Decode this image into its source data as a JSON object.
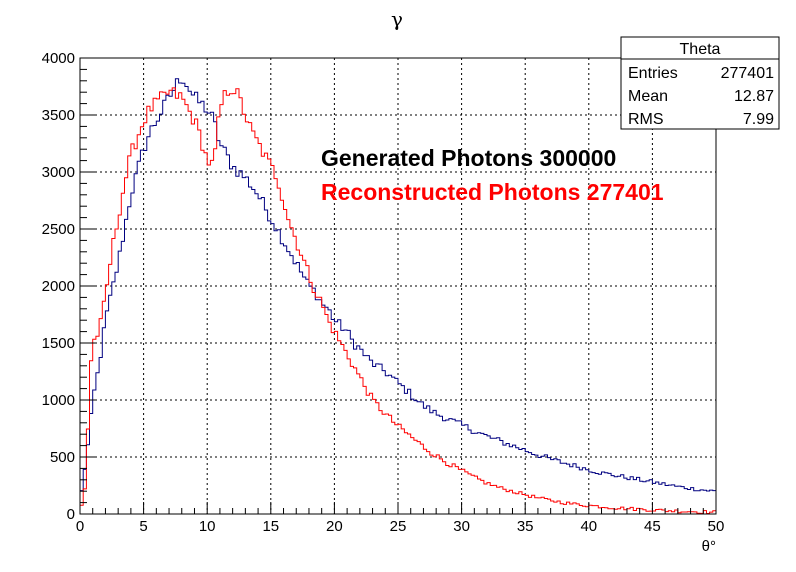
{
  "chart_data": {
    "type": "line",
    "title": "γ",
    "xlabel": "θ°",
    "ylabel": "",
    "xlim": [
      0,
      50
    ],
    "ylim": [
      0,
      4000
    ],
    "grid": true,
    "xticks": [
      "0",
      "5",
      "10",
      "15",
      "20",
      "25",
      "30",
      "35",
      "40",
      "45",
      "50"
    ],
    "yticks": [
      "0",
      "500",
      "1000",
      "1500",
      "2000",
      "2500",
      "3000",
      "3500",
      "4000"
    ],
    "bin_width": 0.25,
    "annotations": [
      {
        "text": "Generated Photons 300000",
        "color": "#000000"
      },
      {
        "text": "Reconstructed Photons 277401",
        "color": "#ff0000"
      }
    ],
    "stats_box": {
      "title": "Theta",
      "rows": [
        {
          "label": "Entries",
          "value": "277401"
        },
        {
          "label": "Mean",
          "value": "12.87"
        },
        {
          "label": "RMS",
          "value": "7.99"
        }
      ]
    },
    "series": [
      {
        "color": "#000080",
        "points": [
          [
            0,
            100
          ],
          [
            0.5,
            500
          ],
          [
            0.75,
            700
          ],
          [
            1,
            1000
          ],
          [
            1.5,
            1300
          ],
          [
            2,
            1700
          ],
          [
            2.5,
            1950
          ],
          [
            3,
            2200
          ],
          [
            3.5,
            2500
          ],
          [
            4,
            2800
          ],
          [
            4.5,
            3000
          ],
          [
            5,
            3200
          ],
          [
            5.5,
            3350
          ],
          [
            6,
            3450
          ],
          [
            6.5,
            3550
          ],
          [
            7,
            3650
          ],
          [
            7.5,
            3750
          ],
          [
            8,
            3850
          ],
          [
            8.5,
            3750
          ],
          [
            9,
            3650
          ],
          [
            9.5,
            3600
          ],
          [
            10,
            3550
          ],
          [
            10.5,
            3450
          ],
          [
            11,
            3250
          ],
          [
            11.5,
            3150
          ],
          [
            12,
            3050
          ],
          [
            12.5,
            3000
          ],
          [
            13,
            2950
          ],
          [
            13.5,
            2880
          ],
          [
            14,
            2800
          ],
          [
            14.5,
            2700
          ],
          [
            15,
            2600
          ],
          [
            15.5,
            2500
          ],
          [
            16,
            2400
          ],
          [
            16.5,
            2300
          ],
          [
            17,
            2200
          ],
          [
            17.5,
            2100
          ],
          [
            18,
            2000
          ],
          [
            18.5,
            1950
          ],
          [
            19,
            1850
          ],
          [
            19.5,
            1800
          ],
          [
            20,
            1700
          ],
          [
            20.5,
            1650
          ],
          [
            21,
            1600
          ],
          [
            21.5,
            1500
          ],
          [
            22,
            1450
          ],
          [
            22.5,
            1380
          ],
          [
            23,
            1320
          ],
          [
            24,
            1250
          ],
          [
            25,
            1150
          ],
          [
            26,
            1050
          ],
          [
            27,
            950
          ],
          [
            28,
            880
          ],
          [
            29,
            830
          ],
          [
            30,
            780
          ],
          [
            31,
            730
          ],
          [
            32,
            680
          ],
          [
            33,
            640
          ],
          [
            34,
            600
          ],
          [
            35,
            560
          ],
          [
            36,
            520
          ],
          [
            37,
            480
          ],
          [
            38,
            450
          ],
          [
            39,
            420
          ],
          [
            40,
            390
          ],
          [
            41,
            360
          ],
          [
            42,
            340
          ],
          [
            43,
            320
          ],
          [
            44,
            300
          ],
          [
            45,
            280
          ],
          [
            46,
            260
          ],
          [
            47,
            240
          ],
          [
            48,
            225
          ],
          [
            49,
            210
          ],
          [
            50,
            200
          ]
        ]
      },
      {
        "color": "#ff0000",
        "points": [
          [
            0,
            0
          ],
          [
            0.5,
            300
          ],
          [
            0.75,
            1200
          ],
          [
            1,
            1500
          ],
          [
            1.5,
            1600
          ],
          [
            2,
            1900
          ],
          [
            2.5,
            2300
          ],
          [
            3,
            2600
          ],
          [
            3.5,
            2900
          ],
          [
            4,
            3150
          ],
          [
            4.5,
            3300
          ],
          [
            5,
            3450
          ],
          [
            5.5,
            3550
          ],
          [
            6,
            3600
          ],
          [
            6.5,
            3650
          ],
          [
            7,
            3700
          ],
          [
            7.5,
            3680
          ],
          [
            8,
            3650
          ],
          [
            8.5,
            3550
          ],
          [
            9,
            3450
          ],
          [
            9.5,
            3300
          ],
          [
            10,
            3100
          ],
          [
            10.5,
            3050
          ],
          [
            11,
            3550
          ],
          [
            11.5,
            3700
          ],
          [
            12,
            3750
          ],
          [
            12.5,
            3650
          ],
          [
            13,
            3500
          ],
          [
            13.5,
            3350
          ],
          [
            14,
            3250
          ],
          [
            14.5,
            3150
          ],
          [
            15,
            3050
          ],
          [
            15.5,
            2950
          ],
          [
            16,
            2750
          ],
          [
            16.5,
            2550
          ],
          [
            17,
            2400
          ],
          [
            17.5,
            2250
          ],
          [
            18,
            2100
          ],
          [
            18.5,
            1950
          ],
          [
            19,
            1850
          ],
          [
            19.5,
            1700
          ],
          [
            20,
            1600
          ],
          [
            20.5,
            1500
          ],
          [
            21,
            1400
          ],
          [
            21.5,
            1300
          ],
          [
            22,
            1200
          ],
          [
            22.5,
            1100
          ],
          [
            23,
            1000
          ],
          [
            24,
            880
          ],
          [
            25,
            770
          ],
          [
            26,
            680
          ],
          [
            27,
            590
          ],
          [
            28,
            510
          ],
          [
            29,
            440
          ],
          [
            30,
            380
          ],
          [
            31,
            320
          ],
          [
            32,
            270
          ],
          [
            33,
            230
          ],
          [
            34,
            200
          ],
          [
            35,
            170
          ],
          [
            36,
            140
          ],
          [
            37,
            120
          ],
          [
            38,
            100
          ],
          [
            39,
            85
          ],
          [
            40,
            75
          ],
          [
            41,
            65
          ],
          [
            42,
            55
          ],
          [
            43,
            48
          ],
          [
            44,
            42
          ],
          [
            45,
            36
          ],
          [
            46,
            30
          ],
          [
            47,
            26
          ],
          [
            48,
            22
          ],
          [
            49,
            18
          ],
          [
            50,
            15
          ]
        ]
      }
    ]
  }
}
